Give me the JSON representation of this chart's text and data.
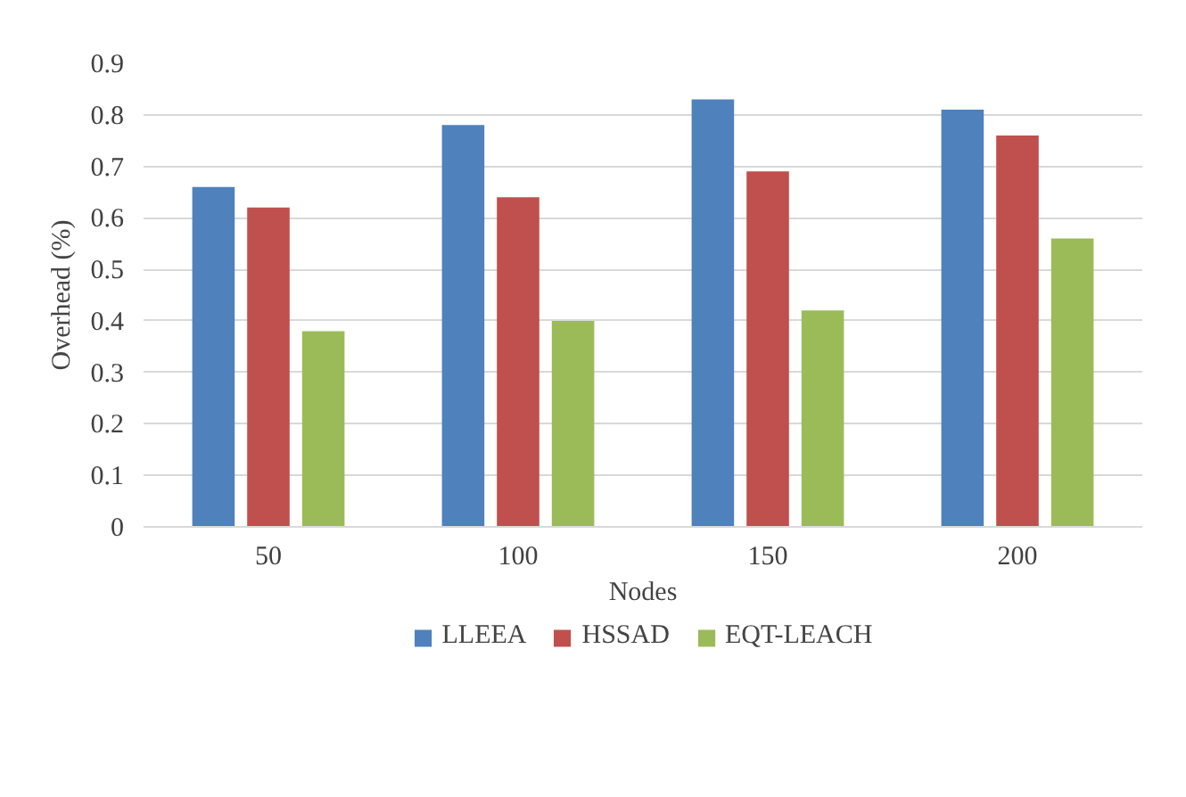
{
  "chart_data": {
    "type": "bar",
    "xlabel": "Nodes",
    "ylabel": "Overhead (%)",
    "categories": [
      "50",
      "100",
      "150",
      "200"
    ],
    "series": [
      {
        "name": "LLEEA",
        "color": "#4f81bd",
        "values": [
          0.66,
          0.78,
          0.83,
          0.81
        ]
      },
      {
        "name": "HSSAD",
        "color": "#c0504d",
        "values": [
          0.62,
          0.64,
          0.69,
          0.76
        ]
      },
      {
        "name": "EQT-LEACH",
        "color": "#9bbb59",
        "values": [
          0.38,
          0.4,
          0.42,
          0.56
        ]
      }
    ],
    "ylim": [
      0,
      0.9
    ],
    "yticks": [
      0,
      0.1,
      0.2,
      0.3,
      0.4,
      0.5,
      0.6,
      0.7,
      0.8,
      0.9
    ],
    "grid": "y",
    "legend": "bottom"
  }
}
